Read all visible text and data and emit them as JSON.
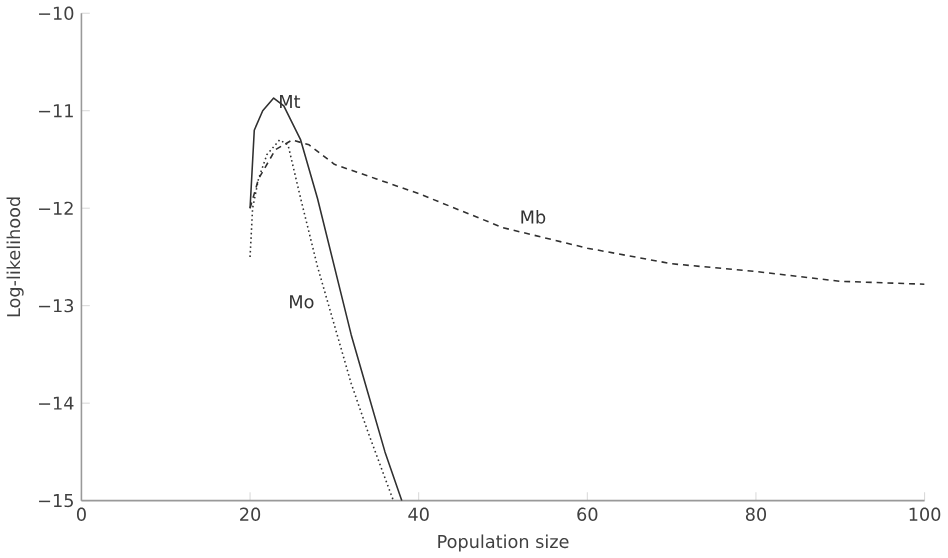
{
  "chart_data": {
    "type": "line",
    "xlabel": "Population size",
    "ylabel": "Log-likelihood",
    "xlim": [
      0,
      100
    ],
    "ylim": [
      -15,
      -10
    ],
    "xticks": [
      0,
      20,
      40,
      60,
      80,
      100
    ],
    "yticks": [
      {
        "value": -15,
        "label": "−15"
      },
      {
        "value": -14,
        "label": "−14"
      },
      {
        "value": -13,
        "label": "−13"
      },
      {
        "value": -12,
        "label": "−12"
      },
      {
        "value": -11,
        "label": "−11"
      },
      {
        "value": -10,
        "label": "−10"
      }
    ],
    "grid": false,
    "marker": "none",
    "series": [
      {
        "name": "Mt",
        "color": "#303030",
        "line_style": "solid",
        "x": [
          20,
          20.5,
          21.5,
          22.8,
          24,
          26,
          28,
          30,
          32,
          34,
          36,
          38
        ],
        "values": [
          -12.0,
          -11.2,
          -11.0,
          -10.87,
          -10.95,
          -11.3,
          -11.9,
          -12.6,
          -13.3,
          -13.9,
          -14.5,
          -15.0
        ]
      },
      {
        "name": "Mo",
        "color": "#303030",
        "line_style": "dotted",
        "x": [
          20,
          20.3,
          21,
          22,
          23.5,
          24.5,
          26,
          28,
          30,
          32,
          34,
          37
        ],
        "values": [
          -12.5,
          -12.0,
          -11.7,
          -11.45,
          -11.3,
          -11.35,
          -11.9,
          -12.6,
          -13.2,
          -13.8,
          -14.3,
          -15.0
        ]
      },
      {
        "name": "Mb",
        "color": "#303030",
        "line_style": "dashed",
        "x": [
          20,
          21,
          23,
          25,
          27,
          30,
          35,
          40,
          50,
          60,
          70,
          80,
          90,
          100
        ],
        "values": [
          -12.0,
          -11.7,
          -11.4,
          -11.3,
          -11.35,
          -11.55,
          -11.7,
          -11.85,
          -12.2,
          -12.41,
          -12.57,
          -12.65,
          -12.75,
          -12.78
        ]
      }
    ]
  }
}
